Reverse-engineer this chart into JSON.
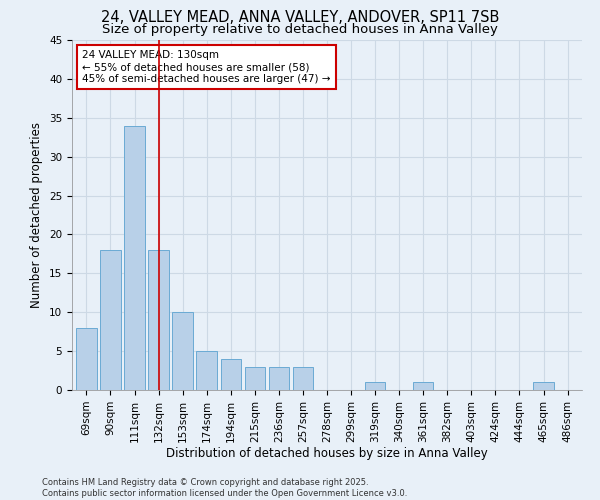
{
  "title_line1": "24, VALLEY MEAD, ANNA VALLEY, ANDOVER, SP11 7SB",
  "title_line2": "Size of property relative to detached houses in Anna Valley",
  "xlabel": "Distribution of detached houses by size in Anna Valley",
  "ylabel": "Number of detached properties",
  "bar_labels": [
    "69sqm",
    "90sqm",
    "111sqm",
    "132sqm",
    "153sqm",
    "174sqm",
    "194sqm",
    "215sqm",
    "236sqm",
    "257sqm",
    "278sqm",
    "299sqm",
    "319sqm",
    "340sqm",
    "361sqm",
    "382sqm",
    "403sqm",
    "424sqm",
    "444sqm",
    "465sqm",
    "486sqm"
  ],
  "bar_values": [
    8,
    18,
    34,
    18,
    10,
    5,
    4,
    3,
    3,
    3,
    0,
    0,
    1,
    0,
    1,
    0,
    0,
    0,
    0,
    1,
    0
  ],
  "bar_color": "#b8d0e8",
  "bar_edge_color": "#6aaad4",
  "vline_x_index": 3,
  "vline_color": "#cc0000",
  "annotation_line1": "24 VALLEY MEAD: 130sqm",
  "annotation_line2": "← 55% of detached houses are smaller (58)",
  "annotation_line3": "45% of semi-detached houses are larger (47) →",
  "annotation_box_facecolor": "#ffffff",
  "annotation_box_edgecolor": "#cc0000",
  "ylim": [
    0,
    45
  ],
  "yticks": [
    0,
    5,
    10,
    15,
    20,
    25,
    30,
    35,
    40,
    45
  ],
  "grid_color": "#cdd9e5",
  "background_color": "#e8f0f8",
  "footer_text": "Contains HM Land Registry data © Crown copyright and database right 2025.\nContains public sector information licensed under the Open Government Licence v3.0.",
  "title_fontsize": 10.5,
  "subtitle_fontsize": 9.5,
  "axis_label_fontsize": 8.5,
  "tick_fontsize": 7.5,
  "annotation_fontsize": 7.5,
  "footer_fontsize": 6.0
}
